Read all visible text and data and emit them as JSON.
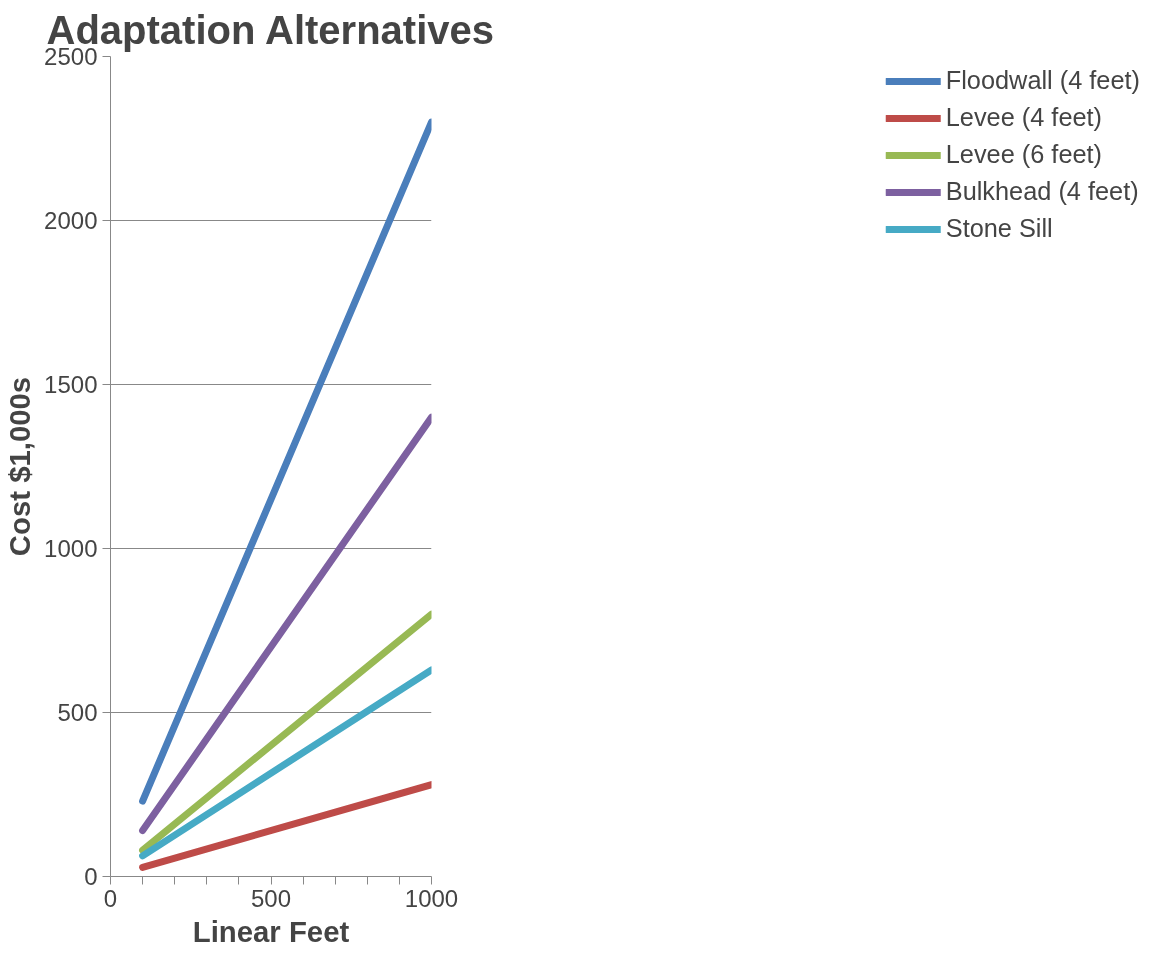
{
  "chart_data": {
    "type": "line",
    "title": "Adaptation Alternatives",
    "xlabel": "Linear Feet",
    "ylabel": "Cost $1,000s",
    "x": [
      100,
      1000
    ],
    "series": [
      {
        "name": "Floodwall (4 feet)",
        "color": "#4a7ebb",
        "values": [
          230,
          2300
        ]
      },
      {
        "name": "Levee (4 feet)",
        "color": "#be4b48",
        "values": [
          28,
          280
        ]
      },
      {
        "name": "Levee (6 feet)",
        "color": "#98b954",
        "values": [
          80,
          800
        ]
      },
      {
        "name": "Bulkhead (4 feet)",
        "color": "#7d60a0",
        "values": [
          140,
          1400
        ]
      },
      {
        "name": "Stone Sill",
        "color": "#46aac5",
        "values": [
          63,
          630
        ]
      }
    ],
    "xlim": [
      0,
      1000
    ],
    "ylim": [
      0,
      2500
    ],
    "xticks": [
      0,
      {
        "value": 100,
        "label": null
      },
      {
        "value": 200,
        "label": null
      },
      {
        "value": 300,
        "label": null
      },
      {
        "value": 400,
        "label": null
      },
      500,
      {
        "value": 600,
        "label": null
      },
      {
        "value": 700,
        "label": null
      },
      {
        "value": 800,
        "label": null
      },
      {
        "value": 900,
        "label": null
      },
      1000
    ],
    "yticks": [
      0,
      500,
      1000,
      1500,
      2000,
      2500
    ],
    "grid": "y",
    "legend": "right",
    "marker": "none",
    "line_style": "solid"
  }
}
